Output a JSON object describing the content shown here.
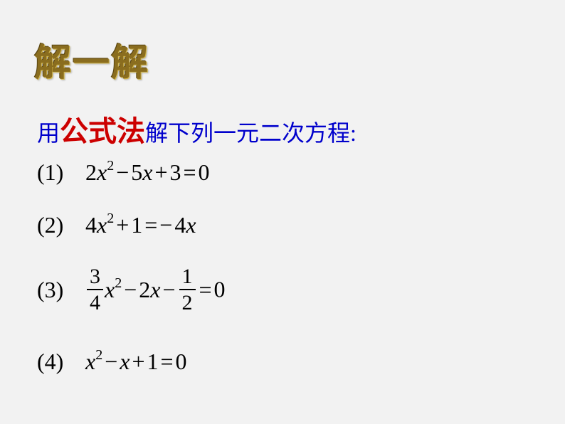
{
  "background_color": "#f2f2f2",
  "title": {
    "text": "解一解",
    "color": "#8a6d1f",
    "font_size": 52,
    "font_family": "KaiTi"
  },
  "instruction": {
    "prefix": "用",
    "highlight": "公式法",
    "suffix": "解下列一元二次方程:",
    "prefix_color": "#0000cc",
    "highlight_color": "#cc0000",
    "suffix_color": "#0000cc",
    "font_size": 32,
    "highlight_font_size": 40
  },
  "equations": {
    "eq1": {
      "label": "(1)",
      "coef1": "2",
      "var1": "x",
      "pow1": "2",
      "op1": "−",
      "coef2": "5",
      "var2": "x",
      "op2": "+",
      "const1": "3",
      "eq": "=",
      "rhs": "0"
    },
    "eq2": {
      "label": "(2)",
      "coef1": "4",
      "var1": "x",
      "pow1": "2",
      "op1": "+",
      "const1": "1",
      "eq": "=",
      "op2": "−",
      "coef2": "4",
      "var2": "x"
    },
    "eq3": {
      "label": "(3)",
      "frac1_num": "3",
      "frac1_den": "4",
      "var1": "x",
      "pow1": "2",
      "op1": "−",
      "coef2": "2",
      "var2": "x",
      "op2": "−",
      "frac2_num": "1",
      "frac2_den": "2",
      "eq": "=",
      "rhs": "0"
    },
    "eq4": {
      "label": "(4)",
      "var1": "x",
      "pow1": "2",
      "op1": "−",
      "var2": "x",
      "op2": "+",
      "const1": "1",
      "eq": "=",
      "rhs": "0"
    }
  },
  "styling": {
    "text_color": "#000000",
    "eq_font_size": 32,
    "sup_font_size": 20,
    "frac_font_size": 30
  }
}
